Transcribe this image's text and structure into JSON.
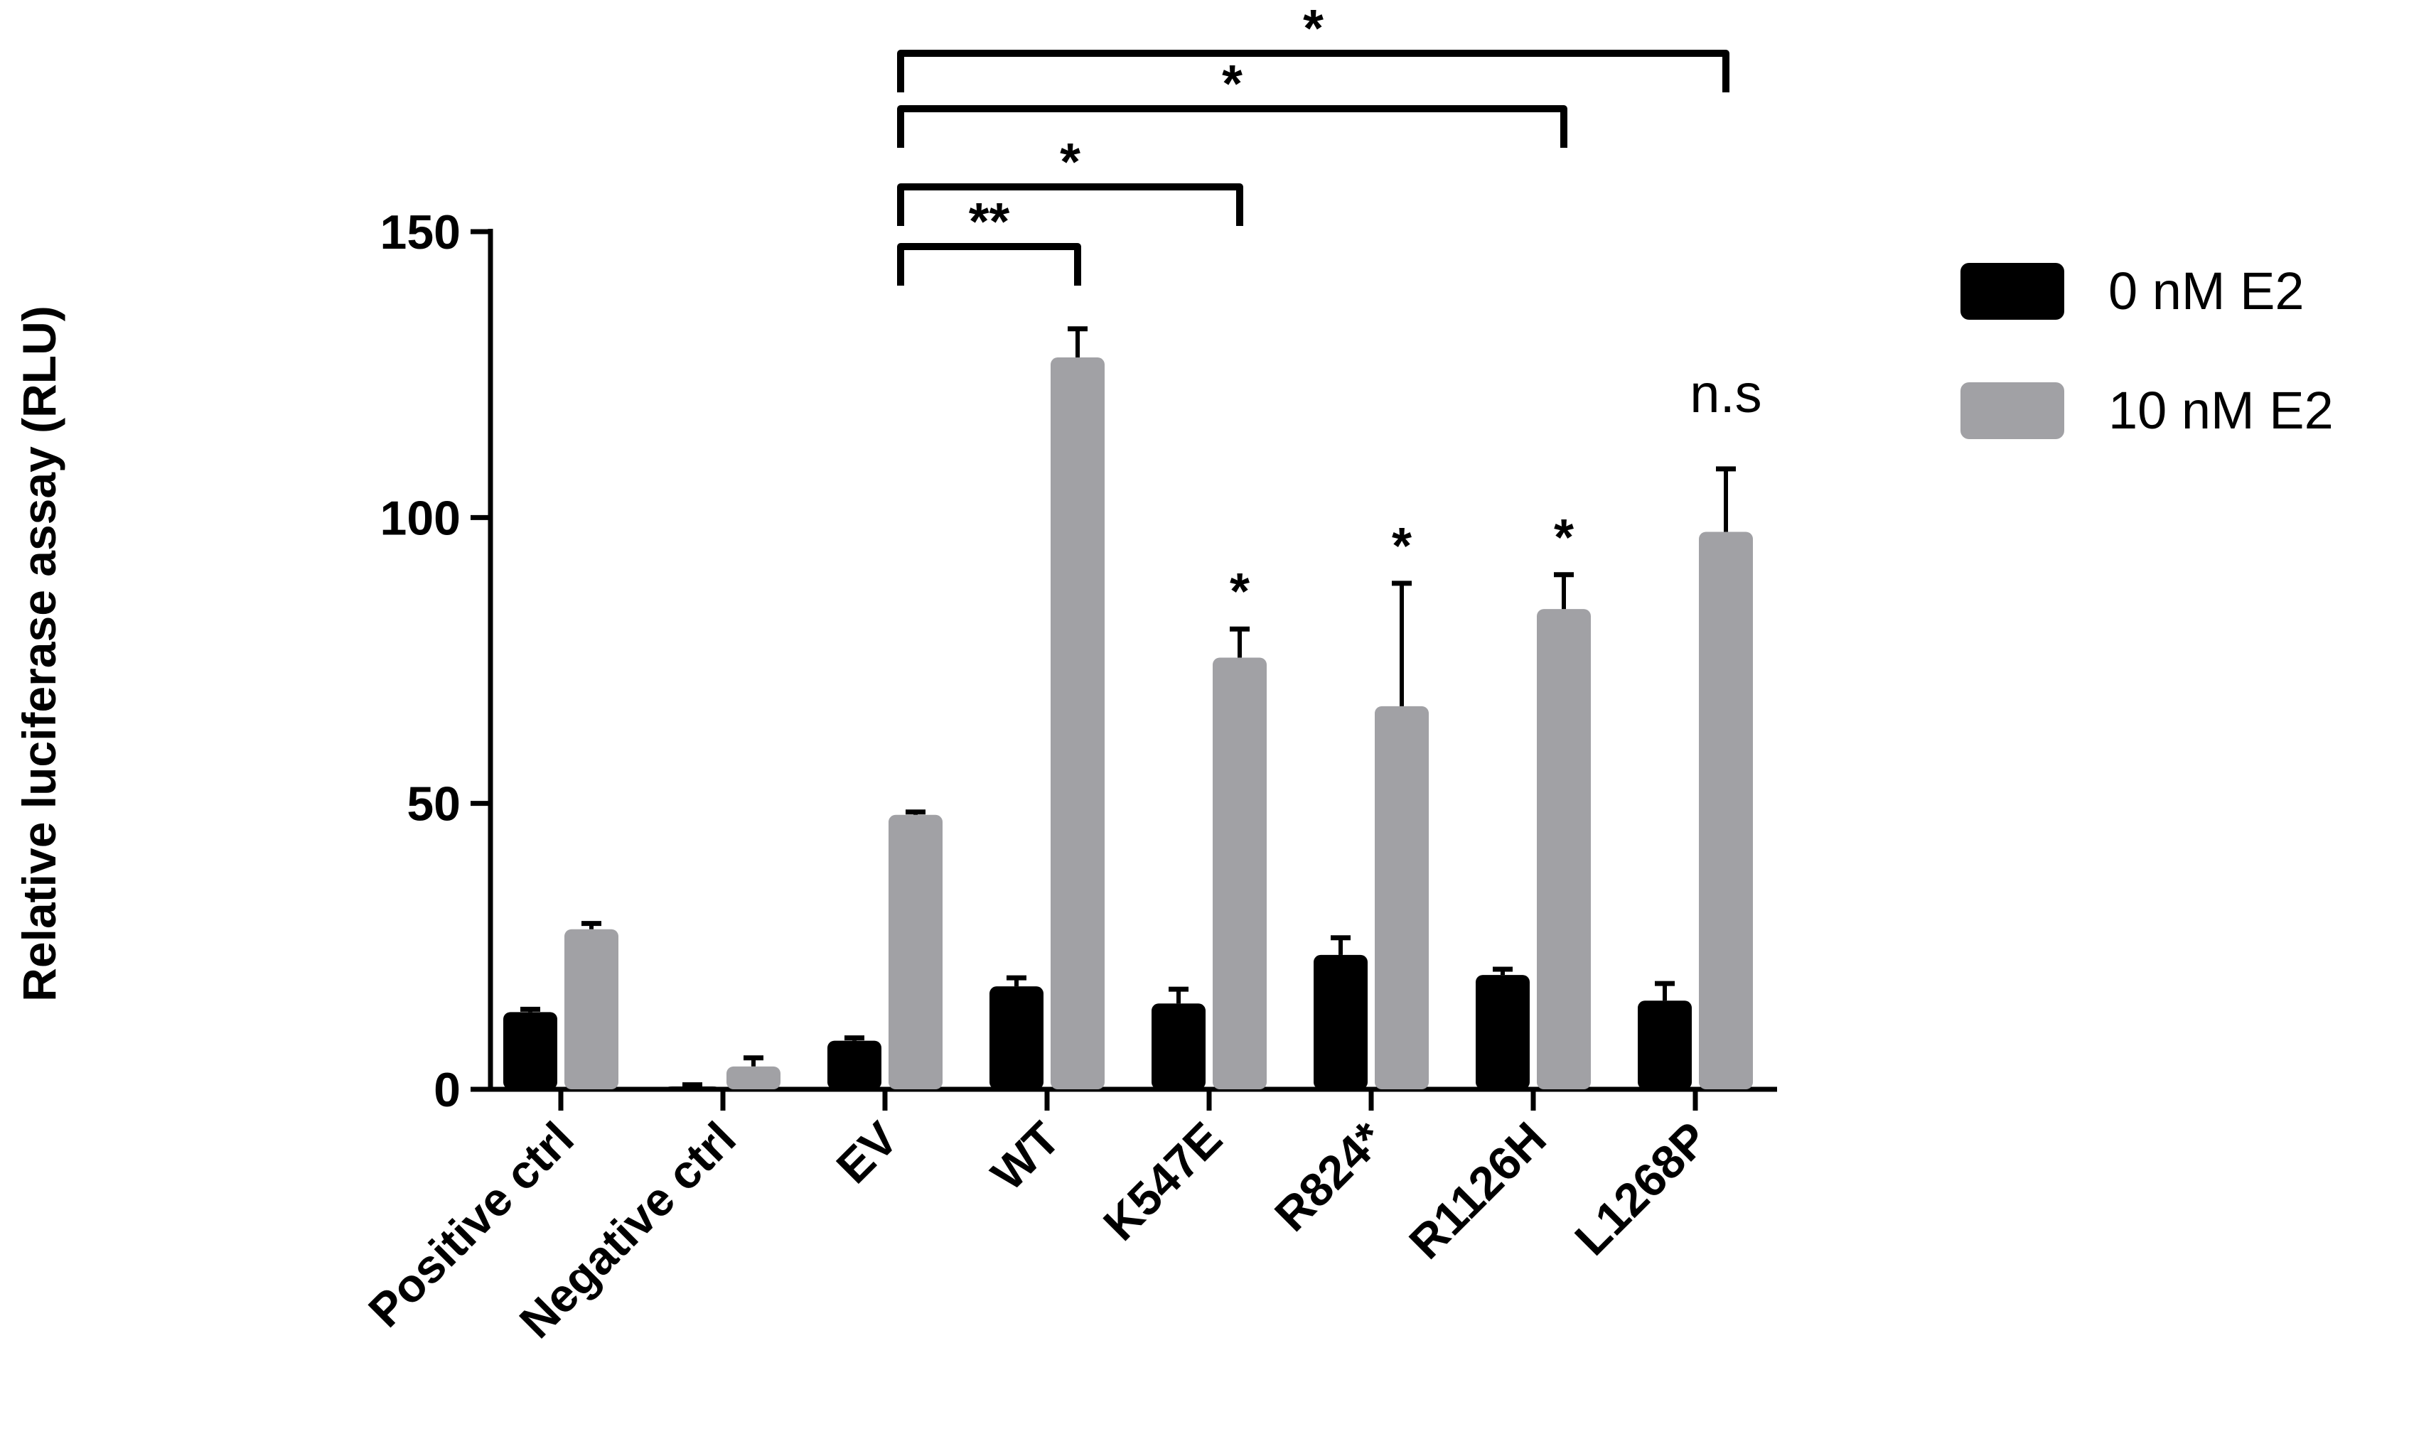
{
  "chart_data": {
    "type": "bar",
    "ylabel": "Relative luciferase assay (RLU)",
    "ylim": [
      0,
      150
    ],
    "yticks": [
      "0",
      "50",
      "100",
      "150"
    ],
    "categories": [
      "Positive ctrl",
      "Negative ctrl",
      "EV",
      "WT",
      "K547E",
      "R824*",
      "R1126H",
      "L1268P"
    ],
    "series": [
      {
        "name": "0 nM E2",
        "color": "#000000",
        "values": [
          13.5,
          0.5,
          8.5,
          18,
          15,
          23.5,
          20,
          15.5
        ],
        "errors": [
          0.5,
          0.3,
          0.5,
          1.5,
          2.5,
          3,
          1,
          3
        ]
      },
      {
        "name": "10 nM E2",
        "color": "#a1a1a5",
        "values": [
          28,
          4,
          48,
          128,
          75.5,
          67,
          84,
          97.5
        ],
        "errors": [
          1,
          1.5,
          0.5,
          5,
          5,
          21.5,
          6,
          11
        ]
      }
    ],
    "annotations": [
      {
        "category": "K547E",
        "text": "*"
      },
      {
        "category": "R824*",
        "text": "*"
      },
      {
        "category": "R1126H",
        "text": "*"
      },
      {
        "category": "L1268P",
        "text": "n.s"
      }
    ],
    "comparisons": [
      {
        "from": "EV",
        "to": "WT",
        "text": "**"
      },
      {
        "from": "EV",
        "to": "K547E",
        "text": "*"
      },
      {
        "from": "EV",
        "to": "R1126H",
        "text": "*"
      },
      {
        "from": "EV",
        "to": "L1268P",
        "text": "*"
      }
    ],
    "legend_position": "top-right"
  }
}
